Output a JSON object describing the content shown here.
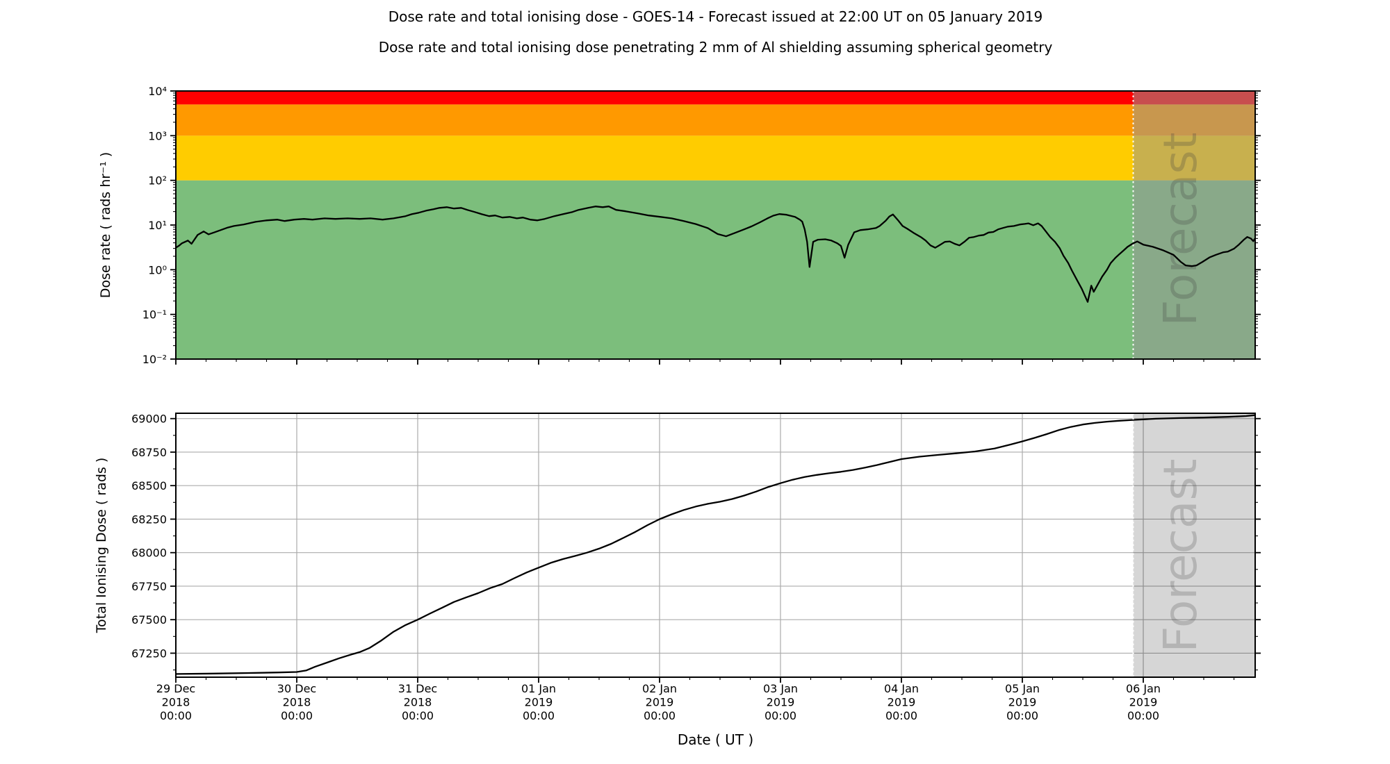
{
  "title": "Dose rate and total ionising dose - GOES-14 - Forecast issued at 22:00 UT on 05 January 2019",
  "subtitle": "Dose rate and total ionising dose penetrating 2 mm of Al shielding assuming spherical geometry",
  "xlabel": "Date ( UT )",
  "forecast": {
    "label": "Forecast",
    "start_day": 7.9167
  },
  "colors": {
    "curve": "#000000",
    "gridline": "#ababab",
    "band_green": "#7cbe7c",
    "band_yellow": "#ffcc00",
    "band_orange": "#ff9900",
    "band_red": "#ff0000",
    "forecast_overlay_top": "rgba(150,150,150,0.52)",
    "forecast_overlay_bottom": "rgba(0,0,0,0.16)",
    "forecast_boundary_line": "#ffffff",
    "watermark": "#404040"
  },
  "panels": {
    "dose_rate": {
      "ylabel": "Dose rate ( rads hr⁻¹ )",
      "yscale": "log",
      "yticks": [
        {
          "value": 10000,
          "label": "10⁴"
        },
        {
          "value": 1000,
          "label": "10³"
        },
        {
          "value": 100,
          "label": "10²"
        },
        {
          "value": 10,
          "label": "10¹"
        },
        {
          "value": 1,
          "label": "10⁰"
        },
        {
          "value": 0.1,
          "label": "10⁻¹"
        },
        {
          "value": 0.01,
          "label": "10⁻²"
        }
      ],
      "bands": [
        {
          "name": "green",
          "lo": 0.01,
          "hi": 100,
          "color_key": "band_green"
        },
        {
          "name": "yellow",
          "lo": 100,
          "hi": 1000,
          "color_key": "band_yellow"
        },
        {
          "name": "orange",
          "lo": 1000,
          "hi": 5000,
          "color_key": "band_orange"
        },
        {
          "name": "red",
          "lo": 5000,
          "hi": 10000,
          "color_key": "band_red"
        }
      ]
    },
    "total_dose": {
      "ylabel": "Total Ionising Dose ( rads )",
      "yscale": "linear",
      "yticks": [
        {
          "value": 69000,
          "label": "69000"
        },
        {
          "value": 68750,
          "label": "68750"
        },
        {
          "value": 68500,
          "label": "68500"
        },
        {
          "value": 68250,
          "label": "68250"
        },
        {
          "value": 68000,
          "label": "68000"
        },
        {
          "value": 67750,
          "label": "67750"
        },
        {
          "value": 67500,
          "label": "67500"
        },
        {
          "value": 67250,
          "label": "67250"
        }
      ]
    }
  },
  "xticks": [
    {
      "day": 0,
      "lines": [
        "29 Dec",
        "2018",
        "00:00"
      ]
    },
    {
      "day": 1,
      "lines": [
        "30 Dec",
        "2018",
        "00:00"
      ]
    },
    {
      "day": 2,
      "lines": [
        "31 Dec",
        "2018",
        "00:00"
      ]
    },
    {
      "day": 3,
      "lines": [
        "01 Jan",
        "2019",
        "00:00"
      ]
    },
    {
      "day": 4,
      "lines": [
        "02 Jan",
        "2019",
        "00:00"
      ]
    },
    {
      "day": 5,
      "lines": [
        "03 Jan",
        "2019",
        "00:00"
      ]
    },
    {
      "day": 6,
      "lines": [
        "04 Jan",
        "2019",
        "00:00"
      ]
    },
    {
      "day": 7,
      "lines": [
        "05 Jan",
        "2019",
        "00:00"
      ]
    },
    {
      "day": 8,
      "lines": [
        "06 Jan",
        "2019",
        "00:00"
      ]
    }
  ],
  "chart_data": [
    {
      "type": "line",
      "name": "dose_rate",
      "title": "Dose rate ( rads hr⁻¹ ) vs Date ( UT ), log scale",
      "x_unit": "days since 29 Dec 2018 00:00 UT",
      "xlim": [
        0,
        8.925
      ],
      "ylim": [
        0.01,
        10000
      ],
      "forecast_start": 7.9167,
      "points": [
        [
          0.0,
          3.1
        ],
        [
          0.03,
          3.5
        ],
        [
          0.05,
          3.9
        ],
        [
          0.1,
          4.5
        ],
        [
          0.13,
          3.8
        ],
        [
          0.18,
          6.0
        ],
        [
          0.23,
          7.2
        ],
        [
          0.27,
          6.2
        ],
        [
          0.32,
          6.9
        ],
        [
          0.37,
          7.7
        ],
        [
          0.43,
          8.8
        ],
        [
          0.48,
          9.5
        ],
        [
          0.56,
          10.3
        ],
        [
          0.66,
          11.8
        ],
        [
          0.75,
          12.7
        ],
        [
          0.84,
          13.2
        ],
        [
          0.9,
          12.3
        ],
        [
          0.98,
          13.2
        ],
        [
          1.06,
          13.7
        ],
        [
          1.13,
          13.2
        ],
        [
          1.23,
          14.1
        ],
        [
          1.32,
          13.7
        ],
        [
          1.42,
          14.1
        ],
        [
          1.52,
          13.7
        ],
        [
          1.61,
          14.1
        ],
        [
          1.71,
          13.2
        ],
        [
          1.8,
          14.1
        ],
        [
          1.9,
          15.8
        ],
        [
          1.95,
          17.5
        ],
        [
          2.01,
          18.9
        ],
        [
          2.07,
          21.0
        ],
        [
          2.13,
          22.5
        ],
        [
          2.18,
          24.2
        ],
        [
          2.24,
          25.1
        ],
        [
          2.3,
          23.4
        ],
        [
          2.36,
          24.2
        ],
        [
          2.41,
          21.8
        ],
        [
          2.47,
          19.6
        ],
        [
          2.53,
          17.5
        ],
        [
          2.59,
          15.8
        ],
        [
          2.64,
          16.4
        ],
        [
          2.7,
          14.7
        ],
        [
          2.76,
          15.2
        ],
        [
          2.82,
          14.1
        ],
        [
          2.87,
          14.7
        ],
        [
          2.93,
          13.2
        ],
        [
          2.99,
          12.7
        ],
        [
          3.05,
          13.7
        ],
        [
          3.13,
          15.8
        ],
        [
          3.2,
          17.5
        ],
        [
          3.28,
          19.6
        ],
        [
          3.33,
          21.8
        ],
        [
          3.41,
          24.2
        ],
        [
          3.47,
          26.1
        ],
        [
          3.53,
          25.1
        ],
        [
          3.58,
          26.1
        ],
        [
          3.64,
          21.8
        ],
        [
          3.72,
          20.3
        ],
        [
          3.82,
          18.2
        ],
        [
          3.91,
          16.4
        ],
        [
          4.01,
          15.2
        ],
        [
          4.1,
          14.1
        ],
        [
          4.2,
          12.3
        ],
        [
          4.3,
          10.5
        ],
        [
          4.4,
          8.5
        ],
        [
          4.48,
          6.3
        ],
        [
          4.55,
          5.6
        ],
        [
          4.62,
          6.6
        ],
        [
          4.7,
          8.0
        ],
        [
          4.76,
          9.3
        ],
        [
          4.83,
          11.5
        ],
        [
          4.89,
          14.0
        ],
        [
          4.94,
          16.2
        ],
        [
          4.99,
          17.6
        ],
        [
          5.05,
          17.0
        ],
        [
          5.12,
          15.2
        ],
        [
          5.16,
          13.2
        ],
        [
          5.18,
          11.9
        ],
        [
          5.2,
          8.0
        ],
        [
          5.22,
          4.2
        ],
        [
          5.24,
          1.15
        ],
        [
          5.27,
          4.2
        ],
        [
          5.31,
          4.7
        ],
        [
          5.37,
          4.8
        ],
        [
          5.42,
          4.5
        ],
        [
          5.47,
          3.9
        ],
        [
          5.5,
          3.4
        ],
        [
          5.53,
          1.85
        ],
        [
          5.56,
          3.6
        ],
        [
          5.61,
          6.9
        ],
        [
          5.66,
          7.7
        ],
        [
          5.72,
          8.0
        ],
        [
          5.79,
          8.6
        ],
        [
          5.82,
          9.5
        ],
        [
          5.87,
          12.5
        ],
        [
          5.9,
          15.5
        ],
        [
          5.93,
          17.3
        ],
        [
          5.97,
          13.0
        ],
        [
          6.01,
          9.5
        ],
        [
          6.05,
          8.2
        ],
        [
          6.1,
          6.7
        ],
        [
          6.16,
          5.4
        ],
        [
          6.2,
          4.5
        ],
        [
          6.24,
          3.5
        ],
        [
          6.28,
          3.1
        ],
        [
          6.32,
          3.6
        ],
        [
          6.36,
          4.2
        ],
        [
          6.4,
          4.3
        ],
        [
          6.44,
          3.8
        ],
        [
          6.48,
          3.5
        ],
        [
          6.52,
          4.2
        ],
        [
          6.56,
          5.2
        ],
        [
          6.6,
          5.4
        ],
        [
          6.64,
          5.8
        ],
        [
          6.68,
          6.0
        ],
        [
          6.72,
          6.8
        ],
        [
          6.76,
          7.0
        ],
        [
          6.8,
          8.0
        ],
        [
          6.84,
          8.6
        ],
        [
          6.88,
          9.2
        ],
        [
          6.93,
          9.5
        ],
        [
          6.98,
          10.3
        ],
        [
          7.02,
          10.6
        ],
        [
          7.05,
          10.9
        ],
        [
          7.09,
          9.9
        ],
        [
          7.13,
          10.9
        ],
        [
          7.16,
          9.5
        ],
        [
          7.2,
          6.9
        ],
        [
          7.23,
          5.4
        ],
        [
          7.27,
          4.2
        ],
        [
          7.31,
          3.0
        ],
        [
          7.34,
          2.05
        ],
        [
          7.38,
          1.4
        ],
        [
          7.41,
          0.96
        ],
        [
          7.45,
          0.6
        ],
        [
          7.49,
          0.38
        ],
        [
          7.54,
          0.19
        ],
        [
          7.57,
          0.44
        ],
        [
          7.59,
          0.32
        ],
        [
          7.63,
          0.5
        ],
        [
          7.66,
          0.7
        ],
        [
          7.7,
          1.0
        ],
        [
          7.73,
          1.4
        ],
        [
          7.77,
          1.85
        ],
        [
          7.8,
          2.2
        ],
        [
          7.84,
          2.75
        ],
        [
          7.87,
          3.25
        ],
        [
          7.91,
          3.8
        ],
        [
          7.95,
          4.3
        ],
        [
          8.0,
          3.65
        ],
        [
          8.08,
          3.25
        ],
        [
          8.16,
          2.75
        ],
        [
          8.25,
          2.15
        ],
        [
          8.31,
          1.5
        ],
        [
          8.35,
          1.25
        ],
        [
          8.4,
          1.2
        ],
        [
          8.44,
          1.25
        ],
        [
          8.49,
          1.5
        ],
        [
          8.55,
          1.9
        ],
        [
          8.6,
          2.15
        ],
        [
          8.66,
          2.45
        ],
        [
          8.7,
          2.55
        ],
        [
          8.75,
          2.95
        ],
        [
          8.79,
          3.65
        ],
        [
          8.83,
          4.65
        ],
        [
          8.86,
          5.4
        ],
        [
          8.89,
          5.0
        ],
        [
          8.91,
          4.35
        ],
        [
          8.925,
          5.05
        ]
      ]
    },
    {
      "type": "line",
      "name": "total_ionising_dose",
      "title": "Total Ionising Dose ( rads ) vs Date ( UT )",
      "x_unit": "days since 29 Dec 2018 00:00 UT",
      "xlim": [
        0,
        8.925
      ],
      "ylim": [
        67069,
        69038
      ],
      "forecast_start": 7.9167,
      "points": [
        [
          0.0,
          67095
        ],
        [
          0.3,
          67098
        ],
        [
          0.6,
          67102
        ],
        [
          0.85,
          67106
        ],
        [
          1.0,
          67110
        ],
        [
          1.08,
          67122
        ],
        [
          1.15,
          67148
        ],
        [
          1.25,
          67180
        ],
        [
          1.35,
          67212
        ],
        [
          1.45,
          67240
        ],
        [
          1.52,
          67258
        ],
        [
          1.6,
          67288
        ],
        [
          1.7,
          67345
        ],
        [
          1.8,
          67410
        ],
        [
          1.9,
          67460
        ],
        [
          2.0,
          67500
        ],
        [
          2.1,
          67545
        ],
        [
          2.2,
          67588
        ],
        [
          2.3,
          67632
        ],
        [
          2.4,
          67666
        ],
        [
          2.5,
          67698
        ],
        [
          2.6,
          67736
        ],
        [
          2.7,
          67766
        ],
        [
          2.8,
          67810
        ],
        [
          2.9,
          67852
        ],
        [
          3.0,
          67888
        ],
        [
          3.1,
          67924
        ],
        [
          3.2,
          67952
        ],
        [
          3.3,
          67975
        ],
        [
          3.4,
          68000
        ],
        [
          3.5,
          68030
        ],
        [
          3.6,
          68066
        ],
        [
          3.7,
          68110
        ],
        [
          3.8,
          68155
        ],
        [
          3.9,
          68205
        ],
        [
          4.0,
          68250
        ],
        [
          4.1,
          68286
        ],
        [
          4.2,
          68318
        ],
        [
          4.3,
          68344
        ],
        [
          4.4,
          68364
        ],
        [
          4.5,
          68380
        ],
        [
          4.6,
          68400
        ],
        [
          4.7,
          68426
        ],
        [
          4.8,
          68456
        ],
        [
          4.9,
          68490
        ],
        [
          5.0,
          68518
        ],
        [
          5.1,
          68544
        ],
        [
          5.2,
          68564
        ],
        [
          5.3,
          68580
        ],
        [
          5.4,
          68592
        ],
        [
          5.5,
          68603
        ],
        [
          5.6,
          68617
        ],
        [
          5.7,
          68634
        ],
        [
          5.8,
          68654
        ],
        [
          5.9,
          68676
        ],
        [
          6.0,
          68698
        ],
        [
          6.15,
          68716
        ],
        [
          6.3,
          68729
        ],
        [
          6.45,
          68741
        ],
        [
          6.6,
          68754
        ],
        [
          6.77,
          68777
        ],
        [
          6.9,
          68806
        ],
        [
          7.0,
          68830
        ],
        [
          7.1,
          68856
        ],
        [
          7.2,
          68884
        ],
        [
          7.3,
          68914
        ],
        [
          7.4,
          68938
        ],
        [
          7.5,
          68956
        ],
        [
          7.6,
          68968
        ],
        [
          7.7,
          68977
        ],
        [
          7.8,
          68984
        ],
        [
          7.9167,
          68990
        ],
        [
          8.1,
          68999
        ],
        [
          8.3,
          69004
        ],
        [
          8.5,
          69008
        ],
        [
          8.7,
          69013
        ],
        [
          8.85,
          69019
        ],
        [
          8.925,
          69026
        ]
      ]
    }
  ]
}
